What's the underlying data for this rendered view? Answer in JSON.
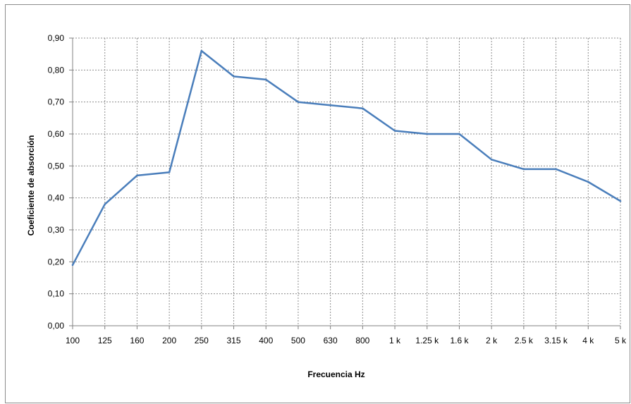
{
  "chart_data": {
    "type": "line",
    "title": "",
    "xlabel": "Frecuencia Hz",
    "ylabel": "Coeficiente de absorción",
    "categories": [
      "100",
      "125",
      "160",
      "200",
      "250",
      "315",
      "400",
      "500",
      "630",
      "800",
      "1 k",
      "1.25 k",
      "1.6 k",
      "2 k",
      "2.5 k",
      "3.15 k",
      "4 k",
      "5 k"
    ],
    "y_ticks": [
      "0,00",
      "0,10",
      "0,20",
      "0,30",
      "0,40",
      "0,50",
      "0,60",
      "0,70",
      "0,80",
      "0,90"
    ],
    "ylim": [
      0,
      0.9
    ],
    "grid": true,
    "legend": "none",
    "series": [
      {
        "color": "#4a7ebb",
        "values": [
          0.19,
          0.38,
          0.47,
          0.48,
          0.86,
          0.78,
          0.77,
          0.7,
          0.69,
          0.68,
          0.61,
          0.6,
          0.6,
          0.52,
          0.49,
          0.49,
          0.45,
          0.39
        ]
      }
    ]
  }
}
